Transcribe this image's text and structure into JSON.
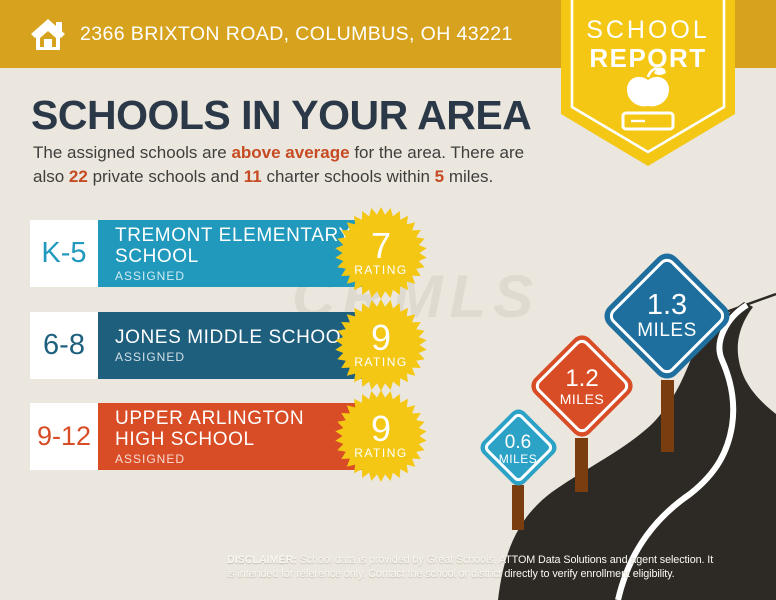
{
  "header": {
    "address": "2366 BRIXTON ROAD, COLUMBUS, OH 43221"
  },
  "badge": {
    "line1": "SCHOOL",
    "line2": "REPORT"
  },
  "page": {
    "title": "SCHOOLS IN YOUR AREA"
  },
  "subtitle": {
    "seg1": "The assigned schools are ",
    "seg2": "above average",
    "seg3": " for the area. There are also ",
    "seg4": "22",
    "seg5": " private schools and ",
    "seg6": "11",
    "seg7": " charter schools within ",
    "seg8": "5",
    "seg9": " miles."
  },
  "schools": [
    {
      "grades": "K-5",
      "name": "TREMONT ELEMENTARY\nSCHOOL",
      "status": "ASSIGNED",
      "rating": "7",
      "rating_label": "RATING",
      "color": "#2199BD"
    },
    {
      "grades": "6-8",
      "name": "JONES MIDDLE SCHOOL",
      "status": "ASSIGNED",
      "rating": "9",
      "rating_label": "RATING",
      "color": "#1E5F7E"
    },
    {
      "grades": "9-12",
      "name": "UPPER ARLINGTON\nHIGH SCHOOL",
      "status": "ASSIGNED",
      "rating": "9",
      "rating_label": "RATING",
      "color": "#D84D26"
    }
  ],
  "signs": [
    {
      "distance": "0.6",
      "unit": "MILES",
      "color": "#2BA2C6"
    },
    {
      "distance": "1.2",
      "unit": "MILES",
      "color": "#D84D26"
    },
    {
      "distance": "1.3",
      "unit": "MILES",
      "color": "#1E6E9E"
    }
  ],
  "watermark": "CRMLS",
  "disclaimer": {
    "label": "DISCLAIMER:",
    "line1": " School data is provided by Great Schools, ATTOM Data Solutions and agent selection. It",
    "line2": "is intended for reference only. Contact the school or district directly to verify enrollment eligibility."
  },
  "colors": {
    "header_gold": "#D7A31F",
    "badge_yellow": "#F3C713",
    "title_navy": "#2B3847",
    "highlight_orange": "#C64A22",
    "row_teal": "#2199BD",
    "row_blue": "#1E5F7E",
    "row_orange": "#D84D26",
    "sign_teal": "#2BA2C6",
    "sign_orange": "#D84D26",
    "sign_blue": "#1E6E9E",
    "road_dark": "#2D2A26",
    "post_brown": "#7A3D10",
    "background_cream": "#EBE7DE"
  }
}
